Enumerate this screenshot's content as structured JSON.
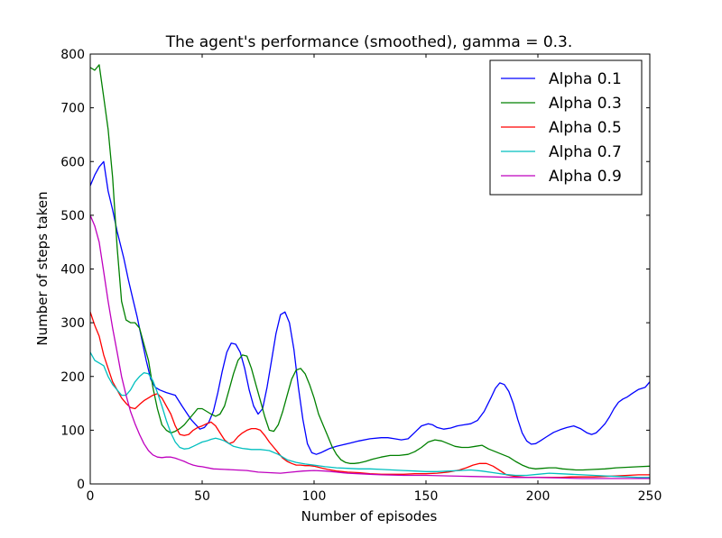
{
  "chart_data": {
    "type": "line",
    "title": "The agent's performance (smoothed), gamma = 0.3.",
    "xlabel": "Number of episodes",
    "ylabel": "Number of steps taken",
    "xlim": [
      0,
      250
    ],
    "ylim": [
      0,
      800
    ],
    "xticks": [
      0,
      50,
      100,
      150,
      200,
      250
    ],
    "yticks": [
      0,
      100,
      200,
      300,
      400,
      500,
      600,
      700,
      800
    ],
    "grid": false,
    "legend_position": "top-right",
    "series": [
      {
        "name": "Alpha 0.1",
        "color": "#0000ff",
        "x": [
          0,
          2,
          4,
          6,
          8,
          10,
          12,
          15,
          17,
          19,
          21,
          23,
          25,
          27,
          29,
          31,
          34,
          38,
          41,
          45,
          49,
          51,
          53,
          55,
          57,
          59,
          61,
          63,
          65,
          67,
          69,
          71,
          73,
          75,
          77,
          79,
          81,
          83,
          85,
          87,
          89,
          91,
          93,
          95,
          97,
          99,
          101,
          103,
          105,
          107,
          110,
          113,
          116,
          120,
          125,
          130,
          133,
          136,
          139,
          142,
          145,
          148,
          151,
          153,
          155,
          158,
          161,
          164,
          167,
          170,
          173,
          176,
          179,
          181,
          183,
          185,
          187,
          189,
          191,
          193,
          195,
          197,
          199,
          201,
          204,
          207,
          210,
          213,
          216,
          219,
          222,
          224,
          226,
          228,
          230,
          232,
          234,
          236,
          238,
          240,
          242,
          245,
          248,
          250
        ],
        "y": [
          555,
          575,
          590,
          600,
          545,
          510,
          470,
          420,
          380,
          345,
          310,
          270,
          230,
          195,
          180,
          175,
          170,
          165,
          145,
          120,
          102,
          105,
          115,
          135,
          170,
          210,
          245,
          262,
          260,
          245,
          215,
          175,
          145,
          130,
          140,
          180,
          230,
          280,
          315,
          320,
          300,
          250,
          180,
          120,
          75,
          58,
          55,
          58,
          62,
          66,
          70,
          73,
          76,
          80,
          84,
          86,
          86,
          84,
          82,
          84,
          96,
          108,
          112,
          110,
          105,
          102,
          104,
          108,
          110,
          112,
          118,
          135,
          160,
          178,
          188,
          185,
          172,
          150,
          120,
          95,
          80,
          74,
          75,
          80,
          88,
          96,
          101,
          105,
          108,
          103,
          95,
          92,
          95,
          103,
          112,
          125,
          140,
          152,
          158,
          162,
          168,
          176,
          180,
          190
        ]
      },
      {
        "name": "Alpha 0.3",
        "color": "#008000",
        "x": [
          0,
          2,
          4,
          6,
          8,
          10,
          12,
          14,
          16,
          18,
          20,
          22,
          24,
          26,
          28,
          30,
          32,
          34,
          36,
          38,
          40,
          42,
          44,
          46,
          48,
          50,
          52,
          54,
          56,
          58,
          60,
          62,
          64,
          66,
          68,
          70,
          72,
          74,
          76,
          78,
          80,
          82,
          84,
          86,
          88,
          90,
          92,
          94,
          96,
          98,
          100,
          102,
          104,
          106,
          108,
          110,
          112,
          114,
          116,
          118,
          120,
          123,
          126,
          130,
          134,
          138,
          142,
          145,
          148,
          151,
          154,
          157,
          160,
          163,
          166,
          169,
          172,
          175,
          178,
          181,
          184,
          187,
          190,
          193,
          196,
          199,
          202,
          205,
          208,
          211,
          214,
          217,
          220,
          225,
          230,
          235,
          240,
          245,
          250
        ],
        "y": [
          775,
          770,
          780,
          720,
          660,
          570,
          440,
          340,
          305,
          300,
          300,
          290,
          260,
          230,
          180,
          140,
          110,
          100,
          95,
          98,
          103,
          110,
          120,
          130,
          140,
          140,
          135,
          130,
          126,
          130,
          145,
          175,
          205,
          230,
          240,
          238,
          215,
          185,
          155,
          125,
          100,
          98,
          110,
          135,
          165,
          195,
          212,
          215,
          205,
          185,
          160,
          130,
          110,
          90,
          70,
          55,
          45,
          40,
          38,
          38,
          39,
          42,
          46,
          50,
          53,
          53,
          55,
          60,
          68,
          78,
          82,
          80,
          75,
          70,
          68,
          68,
          70,
          72,
          65,
          60,
          55,
          50,
          42,
          35,
          30,
          28,
          29,
          30,
          30,
          28,
          27,
          26,
          26,
          27,
          28,
          30,
          31,
          32,
          33
        ]
      },
      {
        "name": "Alpha 0.5",
        "color": "#ff0000",
        "x": [
          0,
          2,
          4,
          6,
          8,
          10,
          12,
          14,
          16,
          18,
          20,
          22,
          24,
          26,
          28,
          30,
          32,
          34,
          36,
          38,
          40,
          42,
          44,
          46,
          48,
          50,
          52,
          54,
          56,
          58,
          60,
          62,
          64,
          66,
          68,
          70,
          72,
          74,
          76,
          78,
          80,
          82,
          84,
          86,
          88,
          90,
          92,
          94,
          96,
          98,
          100,
          103,
          106,
          110,
          115,
          120,
          125,
          130,
          135,
          140,
          145,
          150,
          155,
          160,
          165,
          168,
          171,
          174,
          177,
          180,
          183,
          186,
          190,
          195,
          200,
          205,
          210,
          215,
          220,
          225,
          230,
          235,
          240,
          245,
          250
        ],
        "y": [
          320,
          295,
          275,
          240,
          215,
          190,
          175,
          160,
          150,
          142,
          140,
          148,
          155,
          160,
          165,
          168,
          160,
          145,
          130,
          108,
          92,
          90,
          92,
          100,
          105,
          108,
          112,
          115,
          108,
          95,
          82,
          75,
          78,
          88,
          95,
          100,
          103,
          103,
          100,
          90,
          78,
          68,
          58,
          48,
          42,
          38,
          35,
          35,
          34,
          34,
          33,
          30,
          27,
          24,
          22,
          21,
          19,
          18,
          18,
          18,
          19,
          19,
          20,
          22,
          26,
          30,
          35,
          38,
          38,
          33,
          25,
          17,
          14,
          12,
          12,
          12,
          12,
          13,
          13,
          13,
          14,
          15,
          16,
          17,
          17
        ]
      },
      {
        "name": "Alpha 0.7",
        "color": "#00bfbf",
        "x": [
          0,
          2,
          4,
          6,
          8,
          10,
          12,
          14,
          16,
          18,
          20,
          22,
          24,
          26,
          28,
          30,
          32,
          34,
          36,
          38,
          40,
          42,
          44,
          46,
          48,
          50,
          52,
          54,
          56,
          58,
          60,
          62,
          64,
          66,
          68,
          70,
          72,
          74,
          76,
          78,
          80,
          84,
          88,
          92,
          96,
          100,
          105,
          110,
          115,
          120,
          125,
          130,
          135,
          140,
          145,
          150,
          155,
          160,
          165,
          170,
          175,
          180,
          185,
          190,
          195,
          200,
          205,
          210,
          215,
          220,
          225,
          230,
          235,
          240,
          245,
          250
        ],
        "y": [
          245,
          230,
          225,
          220,
          200,
          185,
          175,
          165,
          165,
          175,
          190,
          200,
          207,
          205,
          192,
          170,
          145,
          118,
          95,
          78,
          68,
          65,
          66,
          70,
          74,
          78,
          80,
          83,
          85,
          83,
          80,
          75,
          70,
          68,
          66,
          65,
          64,
          64,
          64,
          63,
          62,
          55,
          45,
          40,
          37,
          35,
          32,
          30,
          29,
          28,
          28,
          27,
          26,
          25,
          24,
          23,
          23,
          24,
          25,
          26,
          24,
          21,
          18,
          16,
          16,
          18,
          20,
          19,
          18,
          17,
          16,
          15,
          14,
          13,
          12,
          12
        ]
      },
      {
        "name": "Alpha 0.9",
        "color": "#bf00bf",
        "x": [
          0,
          2,
          4,
          6,
          8,
          10,
          12,
          14,
          16,
          18,
          20,
          22,
          24,
          26,
          28,
          30,
          32,
          34,
          36,
          38,
          40,
          42,
          44,
          46,
          48,
          50,
          55,
          60,
          65,
          70,
          75,
          80,
          85,
          90,
          95,
          100,
          105,
          110,
          115,
          120,
          125,
          130,
          140,
          150,
          160,
          170,
          180,
          190,
          200,
          210,
          220,
          230,
          240,
          250
        ],
        "y": [
          500,
          480,
          450,
          395,
          340,
          290,
          245,
          200,
          165,
          135,
          112,
          92,
          75,
          62,
          54,
          50,
          49,
          50,
          50,
          48,
          45,
          42,
          38,
          35,
          33,
          32,
          28,
          27,
          26,
          25,
          22,
          21,
          20,
          22,
          24,
          25,
          24,
          22,
          20,
          19,
          18,
          17,
          16,
          16,
          15,
          14,
          13,
          12,
          12,
          11,
          10,
          10,
          10,
          10
        ]
      }
    ]
  }
}
